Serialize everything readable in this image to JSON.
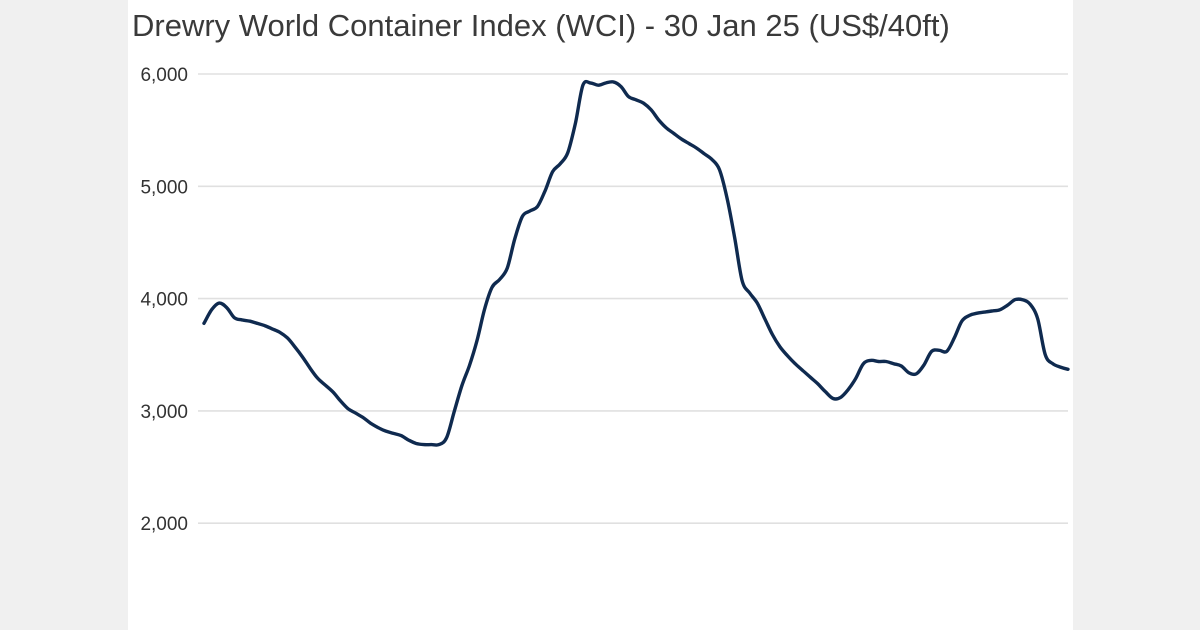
{
  "chart_data": {
    "type": "line",
    "title": "Drewry World Container Index (WCI) - 30 Jan 25 (US$/40ft)",
    "xlabel": "",
    "ylabel": "",
    "ylim": [
      1000,
      6000
    ],
    "yticks": [
      {
        "value": 6000,
        "label": "6,000"
      },
      {
        "value": 5000,
        "label": "5,000"
      },
      {
        "value": 4000,
        "label": "4,000"
      },
      {
        "value": 3000,
        "label": "3,000"
      },
      {
        "value": 2000,
        "label": "2,000"
      }
    ],
    "grid": true,
    "legend": "none",
    "line_color": "#0f2a4f",
    "series": [
      {
        "values": [
          3780,
          3900,
          3960,
          3920,
          3830,
          3810,
          3800,
          3780,
          3760,
          3730,
          3700,
          3650,
          3570,
          3480,
          3380,
          3290,
          3230,
          3170,
          3090,
          3020,
          2980,
          2940,
          2890,
          2850,
          2820,
          2800,
          2780,
          2740,
          2710,
          2700,
          2700,
          2700,
          2760,
          2990,
          3220,
          3400,
          3620,
          3900,
          4100,
          4170,
          4270,
          4530,
          4730,
          4780,
          4820,
          4960,
          5130,
          5200,
          5300,
          5560,
          5900,
          5920,
          5900,
          5920,
          5930,
          5890,
          5800,
          5770,
          5740,
          5680,
          5590,
          5520,
          5470,
          5420,
          5380,
          5340,
          5290,
          5240,
          5150,
          4900,
          4550,
          4160,
          4050,
          3960,
          3820,
          3680,
          3570,
          3490,
          3420,
          3360,
          3300,
          3240,
          3170,
          3110,
          3120,
          3190,
          3290,
          3420,
          3450,
          3440,
          3440,
          3420,
          3400,
          3340,
          3330,
          3410,
          3530,
          3540,
          3530,
          3650,
          3800,
          3850,
          3870,
          3880,
          3890,
          3900,
          3940,
          3990,
          3990,
          3950,
          3820,
          3500,
          3420,
          3390,
          3370
        ]
      }
    ]
  }
}
